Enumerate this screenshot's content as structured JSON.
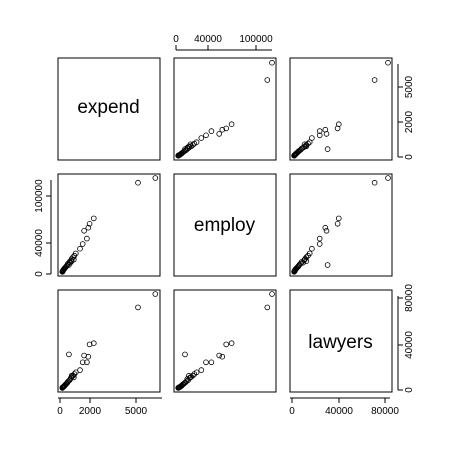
{
  "chart_data": {
    "type": "scatter",
    "title": "",
    "variables": [
      "expend",
      "employ",
      "lawyers"
    ],
    "ticks": {
      "expend": [
        "0",
        "2000",
        "5000"
      ],
      "employ": [
        "0",
        "40000",
        "100000"
      ],
      "lawyers": [
        "0",
        "40000",
        "80000"
      ]
    },
    "ranges": {
      "expend": [
        0,
        6800
      ],
      "employ": [
        0,
        121000
      ],
      "lawyers": [
        0,
        84000
      ]
    },
    "points": [
      {
        "expend": 5500,
        "employ": 115000,
        "lawyers": 72000
      },
      {
        "expend": 6750,
        "employ": 121000,
        "lawyers": 84000
      },
      {
        "expend": 2300,
        "employ": 69000,
        "lawyers": 40000
      },
      {
        "expend": 2000,
        "employ": 62000,
        "lawyers": 39000
      },
      {
        "expend": 1600,
        "employ": 53000,
        "lawyers": 29000
      },
      {
        "expend": 1900,
        "employ": 57000,
        "lawyers": 28000
      },
      {
        "expend": 1800,
        "employ": 43000,
        "lawyers": 23000
      },
      {
        "expend": 1500,
        "employ": 36000,
        "lawyers": 23000
      },
      {
        "expend": 1300,
        "employ": 30000,
        "lawyers": 16000
      },
      {
        "expend": 500,
        "employ": 9000,
        "lawyers": 30000
      },
      {
        "expend": 1000,
        "employ": 24000,
        "lawyers": 14000
      },
      {
        "expend": 900,
        "employ": 21000,
        "lawyers": 12500
      },
      {
        "expend": 800,
        "employ": 19000,
        "lawyers": 11000
      },
      {
        "expend": 700,
        "employ": 17000,
        "lawyers": 10000
      },
      {
        "expend": 650,
        "employ": 15000,
        "lawyers": 9000
      },
      {
        "expend": 550,
        "employ": 13000,
        "lawyers": 7000
      },
      {
        "expend": 450,
        "employ": 11000,
        "lawyers": 6000
      },
      {
        "expend": 400,
        "employ": 9500,
        "lawyers": 5000
      },
      {
        "expend": 350,
        "employ": 8000,
        "lawyers": 4200
      },
      {
        "expend": 300,
        "employ": 7000,
        "lawyers": 3600
      },
      {
        "expend": 250,
        "employ": 6000,
        "lawyers": 3000
      },
      {
        "expend": 200,
        "employ": 5000,
        "lawyers": 2400
      },
      {
        "expend": 180,
        "employ": 4500,
        "lawyers": 2000
      },
      {
        "expend": 150,
        "employ": 3800,
        "lawyers": 1600
      },
      {
        "expend": 120,
        "employ": 3200,
        "lawyers": 1300
      },
      {
        "expend": 100,
        "employ": 2500,
        "lawyers": 1000
      },
      {
        "expend": 80,
        "employ": 2000,
        "lawyers": 800
      },
      {
        "expend": 60,
        "employ": 1500,
        "lawyers": 600
      },
      {
        "expend": 50,
        "employ": 1000,
        "lawyers": 500
      },
      {
        "expend": 40,
        "employ": 700,
        "lawyers": 300
      },
      {
        "expend": 30,
        "employ": 500,
        "lawyers": 200
      },
      {
        "expend": 20,
        "employ": 300,
        "lawyers": 100
      },
      {
        "expend": 700,
        "employ": 14000,
        "lawyers": 11000
      },
      {
        "expend": 850,
        "employ": 16000,
        "lawyers": 9500
      },
      {
        "expend": 600,
        "employ": 12000,
        "lawyers": 8000
      }
    ]
  }
}
